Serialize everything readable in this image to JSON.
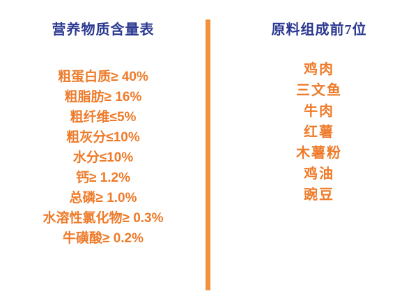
{
  "colors": {
    "title_blue": "#2B3990",
    "text_orange": "#EE7B2A",
    "divider_orange": "#F0913C"
  },
  "nutrition": {
    "title": "营养物质含量表",
    "items": [
      "粗蛋白质≥ 40%",
      "粗脂肪≥ 16%",
      "粗纤维≤5%",
      "粗灰分≤10%",
      "水分≤10%",
      "钙≥ 1.2%",
      "总磷≥ 1.0%",
      "水溶性氯化物≥ 0.3%",
      "牛磺酸≥ 0.2%"
    ]
  },
  "ingredients": {
    "title": "原料组成前7位",
    "items": [
      "鸡肉",
      "三文鱼",
      "牛肉",
      "红薯",
      "木薯粉",
      "鸡油",
      "豌豆"
    ]
  }
}
